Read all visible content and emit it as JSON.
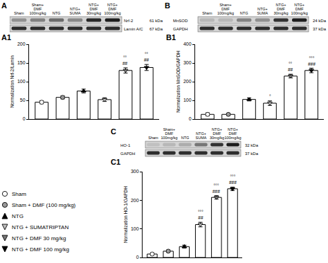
{
  "blots": [
    {
      "panel": "A",
      "lanes": [
        [
          "Sham"
        ],
        [
          "Sham+",
          "DMF",
          "100mg/kg"
        ],
        [
          "NTG"
        ],
        [
          "NTG+",
          "SUMA"
        ],
        [
          "NTG+",
          "DMF",
          "30mg/kg"
        ],
        [
          "NTG+",
          "DMF",
          "100mg/kg"
        ]
      ],
      "rows": [
        {
          "protein": "Nrf-2",
          "size": "61 kDa"
        },
        {
          "protein": "Lamin A/C",
          "size": "67 kDa"
        }
      ]
    },
    {
      "panel": "B",
      "lanes": [
        [
          "Sham"
        ],
        [
          "Sham+",
          "DMF",
          "100mg/kg"
        ],
        [
          "NTG"
        ],
        [
          "NTG+",
          "SUMA"
        ],
        [
          "NTG+",
          "DMF",
          "30mg/kg"
        ],
        [
          "NTG+",
          "DMF",
          "100mg/kg"
        ]
      ],
      "rows": [
        {
          "protein": "MnSOD",
          "size": "24 kDa"
        },
        {
          "protein": "GAPDH",
          "size": "37 kDa"
        }
      ]
    },
    {
      "panel": "C",
      "lanes": [
        [
          "Sham"
        ],
        [
          "Sham+",
          "DMF",
          "100mg/kg"
        ],
        [
          "NTG"
        ],
        [
          "NTG+",
          "SUMA"
        ],
        [
          "NTG+",
          "DMF",
          "30mg/kg"
        ],
        [
          "NTG+",
          "DMF",
          "100mg/kg"
        ]
      ],
      "rows": [
        {
          "protein": "HO-1",
          "size": "32 kDa"
        },
        {
          "protein": "GAPDH",
          "size": "37 kDa"
        }
      ]
    }
  ],
  "chart_data": [
    {
      "type": "bar",
      "title": "A1",
      "ylabel": "Normalization Nrf-2/Lamin",
      "ylim": [
        0,
        200
      ],
      "yticks": [
        0,
        50,
        100,
        150,
        200
      ],
      "tick_labels": "y",
      "series": [
        {
          "name": "Sham",
          "color": "#ffffff",
          "marker": "circle",
          "values": [
            45
          ],
          "errors": [
            4
          ]
        },
        {
          "name": "Sham + DMF (100 mg/kg)",
          "color": "#9a9a9a",
          "marker": "circle",
          "values": [
            58
          ],
          "errors": [
            4
          ]
        },
        {
          "name": "NTG",
          "color": "#000000",
          "marker": "triangle-up",
          "values": [
            75
          ],
          "errors": [
            5
          ]
        },
        {
          "name": "NTG + SUMATRIPTAN",
          "color": "#bdbdbd",
          "marker": "triangle-down",
          "values": [
            52
          ],
          "errors": [
            5
          ]
        },
        {
          "name": "NTG + DMF 30 mg/kg",
          "color": "#777777",
          "marker": "triangle-down",
          "values": [
            130
          ],
          "errors": [
            7
          ]
        },
        {
          "name": "NTG + DMF 100 mg/kg",
          "color": "#000000",
          "marker": "triangle-down",
          "values": [
            138
          ],
          "errors": [
            8
          ]
        }
      ],
      "annotations": [
        {
          "series": "NTG + DMF 30 mg/kg",
          "lines": [
            "°°",
            "##"
          ]
        },
        {
          "series": "NTG + DMF 100 mg/kg",
          "lines": [
            "°°",
            "##"
          ]
        }
      ]
    },
    {
      "type": "bar",
      "title": "B1",
      "ylabel": "Normalization MnSOD/GAPDH",
      "ylim": [
        0,
        400
      ],
      "yticks": [
        0,
        100,
        200,
        300,
        400
      ],
      "tick_labels": "y",
      "series": [
        {
          "name": "Sham",
          "color": "#ffffff",
          "marker": "circle",
          "values": [
            25
          ],
          "errors": [
            8
          ]
        },
        {
          "name": "Sham + DMF (100 mg/kg)",
          "color": "#9a9a9a",
          "marker": "circle",
          "values": [
            25
          ],
          "errors": [
            6
          ]
        },
        {
          "name": "NTG",
          "color": "#000000",
          "marker": "triangle-up",
          "values": [
            105
          ],
          "errors": [
            8
          ]
        },
        {
          "name": "NTG + SUMATRIPTAN",
          "color": "#bdbdbd",
          "marker": "triangle-down",
          "values": [
            85
          ],
          "errors": [
            12
          ]
        },
        {
          "name": "NTG + DMF 30 mg/kg",
          "color": "#777777",
          "marker": "triangle-down",
          "values": [
            230
          ],
          "errors": [
            10
          ]
        },
        {
          "name": "NTG + DMF 100 mg/kg",
          "color": "#000000",
          "marker": "triangle-down",
          "values": [
            260
          ],
          "errors": [
            12
          ]
        }
      ],
      "annotations": [
        {
          "series": "NTG + SUMATRIPTAN",
          "lines": [
            "°"
          ]
        },
        {
          "series": "NTG + DMF 30 mg/kg",
          "lines": [
            "°°",
            "##"
          ]
        },
        {
          "series": "NTG + DMF 100 mg/kg",
          "lines": [
            "°°°",
            "###"
          ]
        }
      ]
    },
    {
      "type": "bar",
      "title": "C1",
      "ylabel": "Normalization HO-1/GAPDH",
      "ylim": [
        0,
        300
      ],
      "yticks": [
        0,
        100,
        200,
        300
      ],
      "tick_labels": "y",
      "series": [
        {
          "name": "Sham",
          "color": "#ffffff",
          "marker": "circle",
          "values": [
            12
          ],
          "errors": [
            4
          ]
        },
        {
          "name": "Sham + DMF (100 mg/kg)",
          "color": "#9a9a9a",
          "marker": "circle",
          "values": [
            22
          ],
          "errors": [
            4
          ]
        },
        {
          "name": "NTG",
          "color": "#000000",
          "marker": "triangle-up",
          "values": [
            38
          ],
          "errors": [
            5
          ]
        },
        {
          "name": "NTG + SUMATRIPTAN",
          "color": "#bdbdbd",
          "marker": "triangle-down",
          "values": [
            115
          ],
          "errors": [
            8
          ]
        },
        {
          "name": "NTG + DMF 30 mg/kg",
          "color": "#777777",
          "marker": "triangle-down",
          "values": [
            210
          ],
          "errors": [
            6
          ]
        },
        {
          "name": "NTG + DMF 100 mg/kg",
          "color": "#000000",
          "marker": "triangle-down",
          "values": [
            240
          ],
          "errors": [
            6
          ]
        }
      ],
      "annotations": [
        {
          "series": "NTG + SUMATRIPTAN",
          "lines": [
            "°°°",
            "##"
          ]
        },
        {
          "series": "NTG + DMF 30 mg/kg",
          "lines": [
            "°°°",
            "###"
          ]
        },
        {
          "series": "NTG + DMF 100 mg/kg",
          "lines": [
            "°°°",
            "###"
          ]
        }
      ]
    }
  ]
}
